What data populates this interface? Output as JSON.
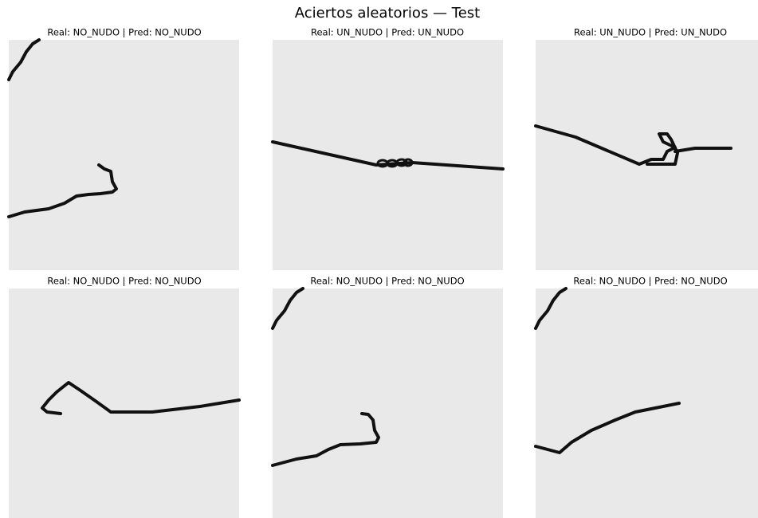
{
  "title": "Aciertos aleatorios — Test",
  "panels": [
    {
      "title": "Real: NO_NUDO | Pred: NO_NUDO"
    },
    {
      "title": "Real: UN_NUDO | Pred: UN_NUDO"
    },
    {
      "title": "Real: UN_NUDO | Pred: UN_NUDO"
    },
    {
      "title": "Real: NO_NUDO | Pred: NO_NUDO"
    },
    {
      "title": "Real: NO_NUDO | Pred: NO_NUDO"
    },
    {
      "title": "Real: NO_NUDO | Pred: NO_NUDO"
    }
  ]
}
